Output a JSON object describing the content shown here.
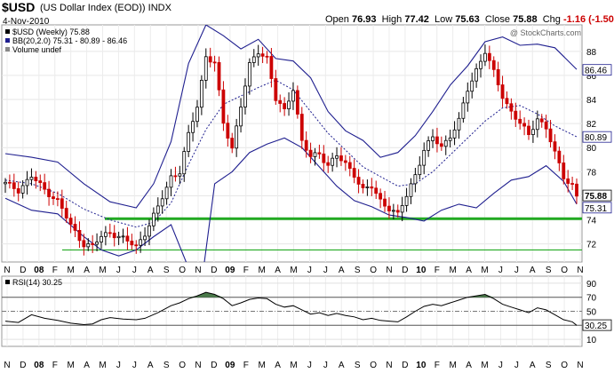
{
  "header": {
    "symbol": "$USD",
    "name": "(US Dollar Index (EOD))",
    "exchange": "INDX",
    "date": "4-Nov-2010",
    "open_label": "Open",
    "open": "76.93",
    "high_label": "High",
    "high": "77.42",
    "low_label": "Low",
    "low": "75.63",
    "close_label": "Close",
    "close": "75.88",
    "chg_label": "Chg",
    "chg": "-1.16 (-1.50%)"
  },
  "legend": {
    "main": "$USD (Weekly) 75.88",
    "bb": "BB(20,2.0) 75.31 - 80.89 - 86.46",
    "volume": "Volume undef",
    "rsi": "RSI(14) 30.25"
  },
  "watermark": "@ StockCharts.com",
  "colors": {
    "up": "#000000",
    "down": "#cc0000",
    "band": "#1f1f8f",
    "support": "#22aa22",
    "rsi_fill": "#4a7a4a",
    "rsi_low_fill": "#c09090"
  },
  "chart_data": [
    {
      "type": "candlestick",
      "title": "$USD (Weekly)",
      "ylim": [
        70.5,
        90.2
      ],
      "y_ticks": [
        72,
        74,
        76,
        78,
        80,
        82,
        84,
        86,
        88
      ],
      "x_ticks": [
        "N",
        "D",
        "08",
        "F",
        "M",
        "A",
        "M",
        "J",
        "J",
        "A",
        "S",
        "O",
        "N",
        "D",
        "09",
        "F",
        "M",
        "A",
        "M",
        "J",
        "J",
        "A",
        "S",
        "O",
        "N",
        "D",
        "10",
        "F",
        "M",
        "A",
        "M",
        "J",
        "J",
        "A",
        "S",
        "O",
        "N"
      ],
      "price_labels": [
        "86.46",
        "80.89",
        "75.88",
        "75.31"
      ],
      "close_path": [
        [
          0,
          77.0
        ],
        [
          3,
          76.5
        ],
        [
          6,
          77.6
        ],
        [
          9,
          76.5
        ],
        [
          12,
          75.6
        ],
        [
          15,
          73.5
        ],
        [
          18,
          72.0
        ],
        [
          20,
          71.8
        ],
        [
          22,
          72.6
        ],
        [
          24,
          73.0
        ],
        [
          27,
          72.4
        ],
        [
          30,
          71.8
        ],
        [
          32,
          72.9
        ],
        [
          35,
          75.0
        ],
        [
          38,
          77.6
        ],
        [
          40,
          78.0
        ],
        [
          42,
          81.0
        ],
        [
          44,
          83.5
        ],
        [
          46,
          87.6
        ],
        [
          48,
          87.0
        ],
        [
          50,
          82.0
        ],
        [
          52,
          80.0
        ],
        [
          54,
          83.5
        ],
        [
          56,
          86.8
        ],
        [
          58,
          88.0
        ],
        [
          60,
          87.5
        ],
        [
          62,
          84.0
        ],
        [
          64,
          83.0
        ],
        [
          66,
          85.0
        ],
        [
          68,
          80.5
        ],
        [
          70,
          79.2
        ],
        [
          72,
          79.5
        ],
        [
          74,
          78.6
        ],
        [
          76,
          79.3
        ],
        [
          78,
          78.6
        ],
        [
          80,
          77.8
        ],
        [
          82,
          76.5
        ],
        [
          84,
          76.7
        ],
        [
          86,
          75.6
        ],
        [
          88,
          75.0
        ],
        [
          90,
          74.4
        ],
        [
          92,
          76.0
        ],
        [
          94,
          77.8
        ],
        [
          96,
          79.8
        ],
        [
          98,
          80.8
        ],
        [
          100,
          80.1
        ],
        [
          102,
          81.0
        ],
        [
          104,
          82.2
        ],
        [
          106,
          84.8
        ],
        [
          108,
          86.5
        ],
        [
          110,
          88.0
        ],
        [
          112,
          86.2
        ],
        [
          114,
          84.3
        ],
        [
          116,
          83.0
        ],
        [
          118,
          82.0
        ],
        [
          120,
          81.0
        ],
        [
          122,
          82.5
        ],
        [
          124,
          81.6
        ],
        [
          126,
          79.5
        ],
        [
          128,
          77.6
        ],
        [
          130,
          76.9
        ],
        [
          131,
          75.9
        ]
      ],
      "bb_upper": [
        [
          0,
          79.5
        ],
        [
          6,
          79.2
        ],
        [
          12,
          78.8
        ],
        [
          18,
          77.0
        ],
        [
          24,
          75.5
        ],
        [
          30,
          75.0
        ],
        [
          34,
          77.0
        ],
        [
          38,
          80.5
        ],
        [
          42,
          87.0
        ],
        [
          46,
          90.2
        ],
        [
          50,
          89.3
        ],
        [
          54,
          88.2
        ],
        [
          58,
          89.0
        ],
        [
          62,
          87.4
        ],
        [
          66,
          87.2
        ],
        [
          70,
          85.8
        ],
        [
          74,
          83.0
        ],
        [
          78,
          81.4
        ],
        [
          82,
          80.6
        ],
        [
          86,
          79.2
        ],
        [
          90,
          79.6
        ],
        [
          94,
          81.0
        ],
        [
          98,
          83.0
        ],
        [
          102,
          85.2
        ],
        [
          106,
          86.8
        ],
        [
          110,
          88.8
        ],
        [
          114,
          89.2
        ],
        [
          118,
          88.5
        ],
        [
          122,
          88.6
        ],
        [
          126,
          88.3
        ],
        [
          131,
          86.5
        ]
      ],
      "bb_mid": [
        [
          0,
          77.3
        ],
        [
          6,
          77.0
        ],
        [
          12,
          76.2
        ],
        [
          18,
          74.9
        ],
        [
          24,
          74.0
        ],
        [
          30,
          73.4
        ],
        [
          34,
          73.8
        ],
        [
          38,
          75.4
        ],
        [
          42,
          78.6
        ],
        [
          46,
          81.5
        ],
        [
          50,
          83.6
        ],
        [
          54,
          84.3
        ],
        [
          58,
          85.0
        ],
        [
          62,
          85.6
        ],
        [
          66,
          84.8
        ],
        [
          70,
          83.0
        ],
        [
          74,
          81.2
        ],
        [
          78,
          79.8
        ],
        [
          82,
          78.4
        ],
        [
          86,
          77.6
        ],
        [
          90,
          76.8
        ],
        [
          94,
          77.0
        ],
        [
          98,
          78.0
        ],
        [
          102,
          79.4
        ],
        [
          106,
          80.8
        ],
        [
          110,
          82.2
        ],
        [
          114,
          83.3
        ],
        [
          118,
          83.5
        ],
        [
          122,
          82.8
        ],
        [
          126,
          81.8
        ],
        [
          131,
          80.9
        ]
      ],
      "bb_lower": [
        [
          0,
          75.8
        ],
        [
          6,
          74.8
        ],
        [
          12,
          74.5
        ],
        [
          18,
          72.6
        ],
        [
          22,
          71.5
        ],
        [
          26,
          71.0
        ],
        [
          30,
          71.5
        ],
        [
          34,
          72.6
        ],
        [
          38,
          73.6
        ],
        [
          42,
          70.0
        ],
        [
          44,
          66.0
        ],
        [
          46,
          71.5
        ],
        [
          48,
          77.0
        ],
        [
          52,
          78.0
        ],
        [
          56,
          79.6
        ],
        [
          60,
          80.3
        ],
        [
          64,
          80.8
        ],
        [
          68,
          80.0
        ],
        [
          72,
          78.4
        ],
        [
          76,
          76.8
        ],
        [
          80,
          75.6
        ],
        [
          84,
          75.1
        ],
        [
          88,
          74.4
        ],
        [
          92,
          74.2
        ],
        [
          96,
          73.9
        ],
        [
          100,
          74.8
        ],
        [
          104,
          75.3
        ],
        [
          108,
          75.0
        ],
        [
          112,
          76.2
        ],
        [
          116,
          77.3
        ],
        [
          120,
          77.6
        ],
        [
          124,
          78.5
        ],
        [
          128,
          77.2
        ],
        [
          131,
          75.3
        ]
      ],
      "support_levels": [
        74.1,
        71.5
      ]
    },
    {
      "type": "line",
      "title": "RSI(14)",
      "ylim": [
        0,
        100
      ],
      "y_ticks": [
        90,
        70,
        50,
        30,
        10
      ],
      "overbought": 70,
      "oversold": 30,
      "last_value": "30.25",
      "values": [
        [
          0,
          36
        ],
        [
          3,
          34
        ],
        [
          6,
          45
        ],
        [
          9,
          40
        ],
        [
          12,
          37
        ],
        [
          15,
          33
        ],
        [
          18,
          31
        ],
        [
          20,
          32
        ],
        [
          22,
          38
        ],
        [
          24,
          41
        ],
        [
          27,
          39
        ],
        [
          30,
          38
        ],
        [
          32,
          40
        ],
        [
          35,
          48
        ],
        [
          38,
          58
        ],
        [
          40,
          62
        ],
        [
          42,
          68
        ],
        [
          44,
          72
        ],
        [
          46,
          77
        ],
        [
          48,
          74
        ],
        [
          50,
          68
        ],
        [
          52,
          58
        ],
        [
          54,
          62
        ],
        [
          56,
          67
        ],
        [
          58,
          69
        ],
        [
          60,
          68
        ],
        [
          62,
          60
        ],
        [
          64,
          56
        ],
        [
          66,
          58
        ],
        [
          68,
          52
        ],
        [
          70,
          46
        ],
        [
          72,
          48
        ],
        [
          74,
          44
        ],
        [
          76,
          47
        ],
        [
          78,
          44
        ],
        [
          80,
          42
        ],
        [
          82,
          38
        ],
        [
          84,
          40
        ],
        [
          86,
          37
        ],
        [
          88,
          36
        ],
        [
          90,
          35
        ],
        [
          92,
          42
        ],
        [
          94,
          50
        ],
        [
          96,
          57
        ],
        [
          98,
          60
        ],
        [
          100,
          58
        ],
        [
          102,
          62
        ],
        [
          104,
          66
        ],
        [
          106,
          70
        ],
        [
          108,
          72
        ],
        [
          110,
          74
        ],
        [
          112,
          68
        ],
        [
          114,
          60
        ],
        [
          116,
          56
        ],
        [
          118,
          52
        ],
        [
          120,
          48
        ],
        [
          122,
          55
        ],
        [
          124,
          52
        ],
        [
          126,
          45
        ],
        [
          128,
          38
        ],
        [
          130,
          35
        ],
        [
          131,
          30
        ]
      ]
    }
  ]
}
